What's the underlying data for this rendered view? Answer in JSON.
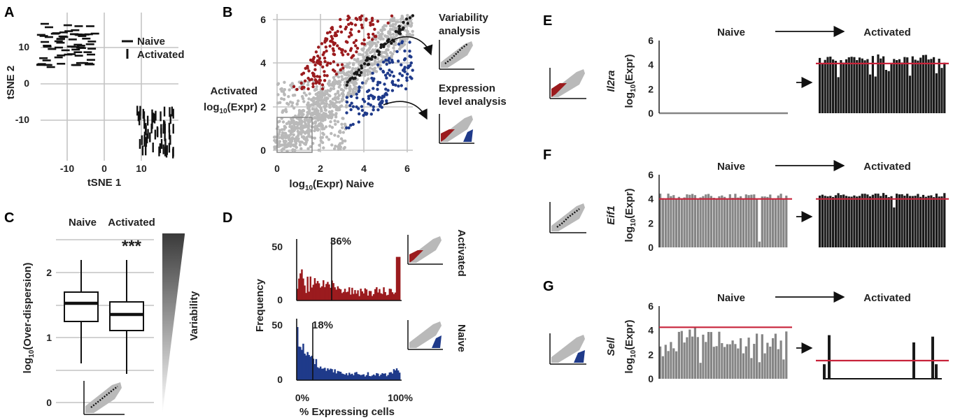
{
  "colors": {
    "red": "#9b1b1e",
    "blue": "#1f3a8a",
    "grayPt": "#b9b9b9",
    "black": "#1a1a1a",
    "barGray": "#858585",
    "refLine": "#c8233a",
    "grid": "#c4c4c4"
  },
  "panels": {
    "a": "A",
    "b": "B",
    "c": "C",
    "d": "D",
    "e": "E",
    "f": "F",
    "g": "G"
  },
  "a": {
    "xlabel": "tSNE 1",
    "ylabel": "tSNE 2",
    "xticks": [
      "-10",
      "0",
      "10"
    ],
    "yticks": [
      "10",
      "0",
      "-10"
    ],
    "legend": [
      "Naive",
      "Activated"
    ]
  },
  "b": {
    "ylabel1": "Activated",
    "ylabel2": "log",
    "ylabelSub": "10",
    "ylabel3": "(Expr)",
    "xlabelPre": "log",
    "xlabelSub": "10",
    "xlabelPost": "(Expr)  Naive",
    "xticks": [
      "0",
      "2",
      "4",
      "6"
    ],
    "yticks": [
      "0",
      "2",
      "4",
      "6"
    ],
    "var1": "Variability",
    "var2": "analysis",
    "expr1": "Expression",
    "expr2": "level analysis"
  },
  "c": {
    "groups": [
      "Naive",
      "Activated"
    ],
    "stars": "***",
    "ylabelPre": "log",
    "ylabelSub": "10",
    "ylabelPost": "(Over-dispersion)",
    "yticks": [
      "0",
      "1",
      "2"
    ],
    "variability": "Variability"
  },
  "d": {
    "top": {
      "pct": "36%",
      "side": "Activated",
      "yticks": [
        "0",
        "50"
      ]
    },
    "bottom": {
      "pct": "18%",
      "side": "Naive",
      "yticks": [
        "0",
        "50"
      ]
    },
    "ylabel": "Frequency",
    "xticks": [
      "0%",
      "100%"
    ],
    "xlabel": "% Expressing cells"
  },
  "e": {
    "gene": "Il2ra",
    "naive": "Naive",
    "activated": "Activated",
    "ylabelPre": "log",
    "ylabelSub": "10",
    "ylabelPost": "(Expr)",
    "yticks": [
      "0",
      "2",
      "4",
      "6"
    ]
  },
  "f": {
    "gene": "Eif1",
    "naive": "Naive",
    "activated": "Activated",
    "ylabelPre": "log",
    "ylabelSub": "10",
    "ylabelPost": "(Expr)",
    "yticks": [
      "0",
      "2",
      "4",
      "6"
    ]
  },
  "g": {
    "gene": "Sell",
    "naive": "Naive",
    "activated": "Activated",
    "ylabelPre": "log",
    "ylabelSub": "10",
    "ylabelPost": "(Expr)",
    "yticks": [
      "0",
      "2",
      "4",
      "6"
    ]
  }
}
